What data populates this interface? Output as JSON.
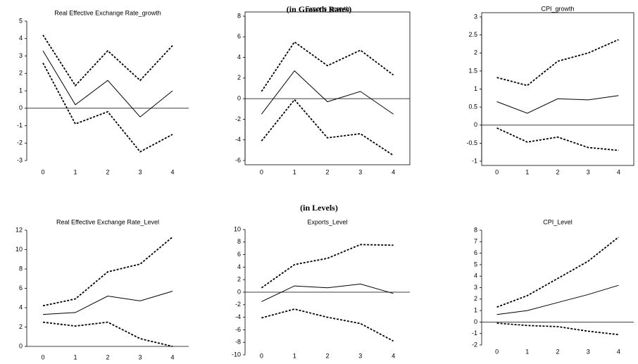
{
  "headers": [
    "(in Growth Rates)",
    "(in Levels)"
  ],
  "chart_data": [
    {
      "type": "line",
      "title": "Real Effective Exchange Rate_growth",
      "x": [
        0,
        1,
        2,
        3,
        4
      ],
      "xlim": [
        -0.5,
        4.5
      ],
      "xticks": [
        0,
        1,
        2,
        3,
        4
      ],
      "ylim": [
        -3,
        5
      ],
      "yticks": [
        -3,
        -2,
        -1,
        0,
        1,
        2,
        3,
        4,
        5
      ],
      "frame": false,
      "series": [
        {
          "color": "#000000",
          "line_style": "solid",
          "values": [
            3.3,
            0.2,
            1.6,
            -0.5,
            1.0
          ]
        },
        {
          "color": "#000000",
          "line_style": "dashed",
          "values": [
            4.2,
            1.3,
            3.3,
            1.6,
            3.6
          ]
        },
        {
          "color": "#000000",
          "line_style": "dashed",
          "values": [
            2.6,
            -0.9,
            -0.2,
            -2.5,
            -1.5
          ]
        }
      ]
    },
    {
      "type": "line",
      "title": "Exports_growth",
      "x": [
        0,
        1,
        2,
        3,
        4
      ],
      "xlim": [
        -0.5,
        4.5
      ],
      "xticks": [
        0,
        1,
        2,
        3,
        4
      ],
      "ylim": [
        -6,
        8
      ],
      "yticks": [
        -6,
        -4,
        -2,
        0,
        2,
        4,
        6,
        8
      ],
      "frame": true,
      "series": [
        {
          "color": "#000000",
          "line_style": "solid",
          "values": [
            -1.5,
            2.7,
            -0.3,
            0.7,
            -1.5
          ]
        },
        {
          "color": "#000000",
          "line_style": "dashed",
          "values": [
            0.7,
            5.5,
            3.2,
            4.7,
            2.3
          ]
        },
        {
          "color": "#000000",
          "line_style": "dashed",
          "values": [
            -4.1,
            -0.1,
            -3.8,
            -3.4,
            -5.5
          ]
        }
      ]
    },
    {
      "type": "line",
      "title": "CPI_growth",
      "x": [
        0,
        1,
        2,
        3,
        4
      ],
      "xlim": [
        -0.5,
        4.5
      ],
      "xticks": [
        0,
        1,
        2,
        3,
        4
      ],
      "ylim": [
        -1,
        3
      ],
      "yticks": [
        -1,
        -0.5,
        0,
        0.5,
        1,
        1.5,
        2,
        2.5,
        3
      ],
      "frame": true,
      "series": [
        {
          "color": "#000000",
          "line_style": "solid",
          "values": [
            0.65,
            0.33,
            0.73,
            0.7,
            0.82
          ]
        },
        {
          "color": "#000000",
          "line_style": "dashed",
          "values": [
            1.32,
            1.1,
            1.77,
            2.0,
            2.37
          ]
        },
        {
          "color": "#000000",
          "line_style": "dashed",
          "values": [
            -0.08,
            -0.47,
            -0.33,
            -0.62,
            -0.7
          ]
        }
      ]
    },
    {
      "type": "line",
      "title": "Real Effective Exchange Rate_Level",
      "x": [
        0,
        1,
        2,
        3,
        4
      ],
      "xlim": [
        -0.5,
        4.5
      ],
      "xticks": [
        0,
        1,
        2,
        3,
        4
      ],
      "ylim": [
        0,
        12
      ],
      "yticks": [
        0,
        2,
        4,
        6,
        8,
        10,
        12
      ],
      "frame": false,
      "series": [
        {
          "color": "#000000",
          "line_style": "solid",
          "values": [
            3.3,
            3.5,
            5.2,
            4.7,
            5.7
          ]
        },
        {
          "color": "#000000",
          "line_style": "dashed",
          "values": [
            4.2,
            4.9,
            7.7,
            8.5,
            11.3
          ]
        },
        {
          "color": "#000000",
          "line_style": "dashed",
          "values": [
            2.5,
            2.1,
            2.5,
            0.8,
            0.0
          ]
        }
      ]
    },
    {
      "type": "line",
      "title": "Exports_Level",
      "x": [
        0,
        1,
        2,
        3,
        4
      ],
      "xlim": [
        -0.5,
        4.5
      ],
      "xticks": [
        0,
        1,
        2,
        3,
        4
      ],
      "ylim": [
        -10,
        10
      ],
      "yticks": [
        -10,
        -8,
        -6,
        -4,
        -2,
        0,
        2,
        4,
        6,
        8,
        10
      ],
      "frame": false,
      "series": [
        {
          "color": "#000000",
          "line_style": "solid",
          "values": [
            -1.5,
            1.0,
            0.7,
            1.3,
            -0.2
          ]
        },
        {
          "color": "#000000",
          "line_style": "dashed",
          "values": [
            0.7,
            4.4,
            5.4,
            7.6,
            7.5
          ]
        },
        {
          "color": "#000000",
          "line_style": "dashed",
          "values": [
            -4.1,
            -2.7,
            -4.0,
            -5.0,
            -7.8
          ]
        }
      ]
    },
    {
      "type": "line",
      "title": "CPI_Level",
      "x": [
        0,
        1,
        2,
        3,
        4
      ],
      "xlim": [
        -0.5,
        4.5
      ],
      "xticks": [
        0,
        1,
        2,
        3,
        4
      ],
      "ylim": [
        -2,
        8
      ],
      "yticks": [
        -2,
        -1,
        0,
        1,
        2,
        3,
        4,
        5,
        6,
        7,
        8
      ],
      "frame": false,
      "series": [
        {
          "color": "#000000",
          "line_style": "solid",
          "values": [
            0.65,
            1.0,
            1.7,
            2.4,
            3.2
          ]
        },
        {
          "color": "#000000",
          "line_style": "dashed",
          "values": [
            1.3,
            2.3,
            3.8,
            5.3,
            7.4
          ]
        },
        {
          "color": "#000000",
          "line_style": "dashed",
          "values": [
            -0.1,
            -0.3,
            -0.4,
            -0.8,
            -1.1
          ]
        }
      ]
    }
  ]
}
